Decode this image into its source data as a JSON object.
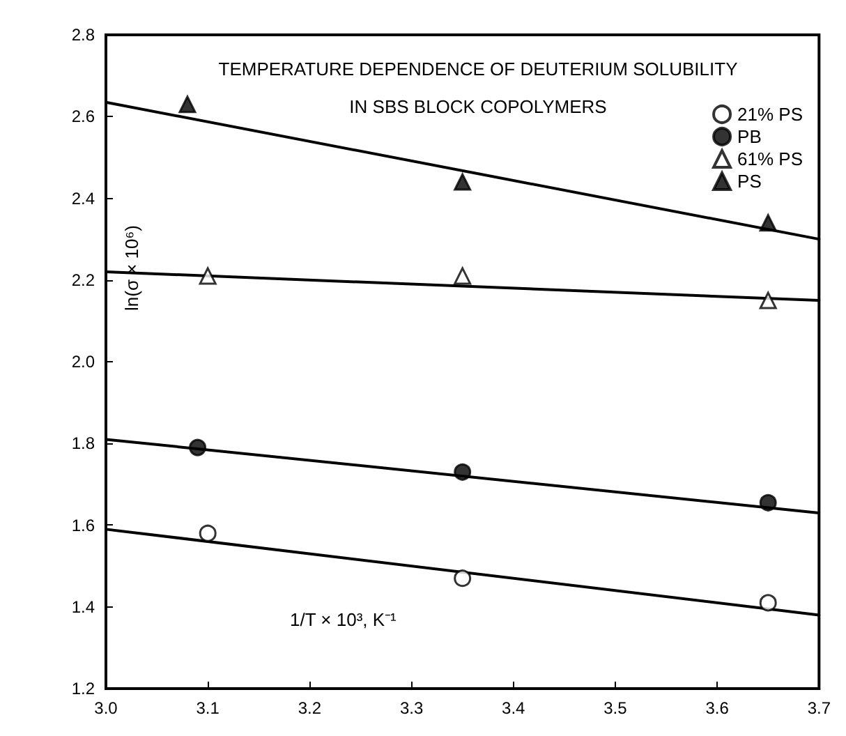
{
  "chart_data": {
    "type": "scatter",
    "title": "TEMPERATURE DEPENDENCE OF DEUTERIUM SOLUBILITY",
    "subtitle": "IN SBS BLOCK COPOLYMERS",
    "xlabel": "1/T × 10³, K⁻¹",
    "ylabel": "ln(σ × 10⁶)",
    "x": [
      3.1,
      3.35,
      3.65
    ],
    "series": [
      {
        "name": "21% PS",
        "color": "#ffffff",
        "marker": "circle",
        "values": [
          1.58,
          1.47,
          1.41
        ]
      },
      {
        "name": "PB",
        "color": "#000000",
        "marker": "circle",
        "x": [
          3.09,
          3.35,
          3.65
        ],
        "values": [
          1.79,
          1.73,
          1.655
        ]
      },
      {
        "name": "61% PS",
        "color": "#ffffff",
        "marker": "triangle",
        "values": [
          2.21,
          2.21,
          2.15
        ]
      },
      {
        "name": "PS",
        "color": "#000000",
        "marker": "triangle",
        "x": [
          3.08,
          3.35,
          3.65
        ],
        "values": [
          2.63,
          2.44,
          2.34
        ]
      },
      {
        "type": "line",
        "color": "#000000",
        "marker": "none",
        "x": [
          3.0,
          3.7
        ],
        "values": [
          1.59,
          1.38
        ]
      },
      {
        "type": "line",
        "color": "#000000",
        "marker": "none",
        "x": [
          3.0,
          3.7
        ],
        "values": [
          1.81,
          1.63
        ]
      },
      {
        "type": "line",
        "color": "#000000",
        "marker": "none",
        "x": [
          3.0,
          3.7
        ],
        "values": [
          2.22,
          2.15
        ]
      },
      {
        "type": "line",
        "color": "#000000",
        "marker": "none",
        "x": [
          3.0,
          3.7
        ],
        "values": [
          2.635,
          2.3
        ]
      }
    ],
    "xlim": [
      3.0,
      3.7
    ],
    "xticks": [
      {
        "value": 3.0,
        "label": "3.0"
      },
      3.1,
      3.2,
      3.3,
      3.4,
      3.5,
      3.6,
      3.7
    ],
    "ylim": [
      1.2,
      2.8
    ],
    "yticks": [
      1.2,
      1.4,
      1.6,
      1.8,
      {
        "value": 2.0,
        "label": "2.0"
      },
      2.2,
      2.4,
      2.6,
      2.8
    ],
    "grid": false,
    "legend": "top right",
    "line_style": "solid"
  }
}
